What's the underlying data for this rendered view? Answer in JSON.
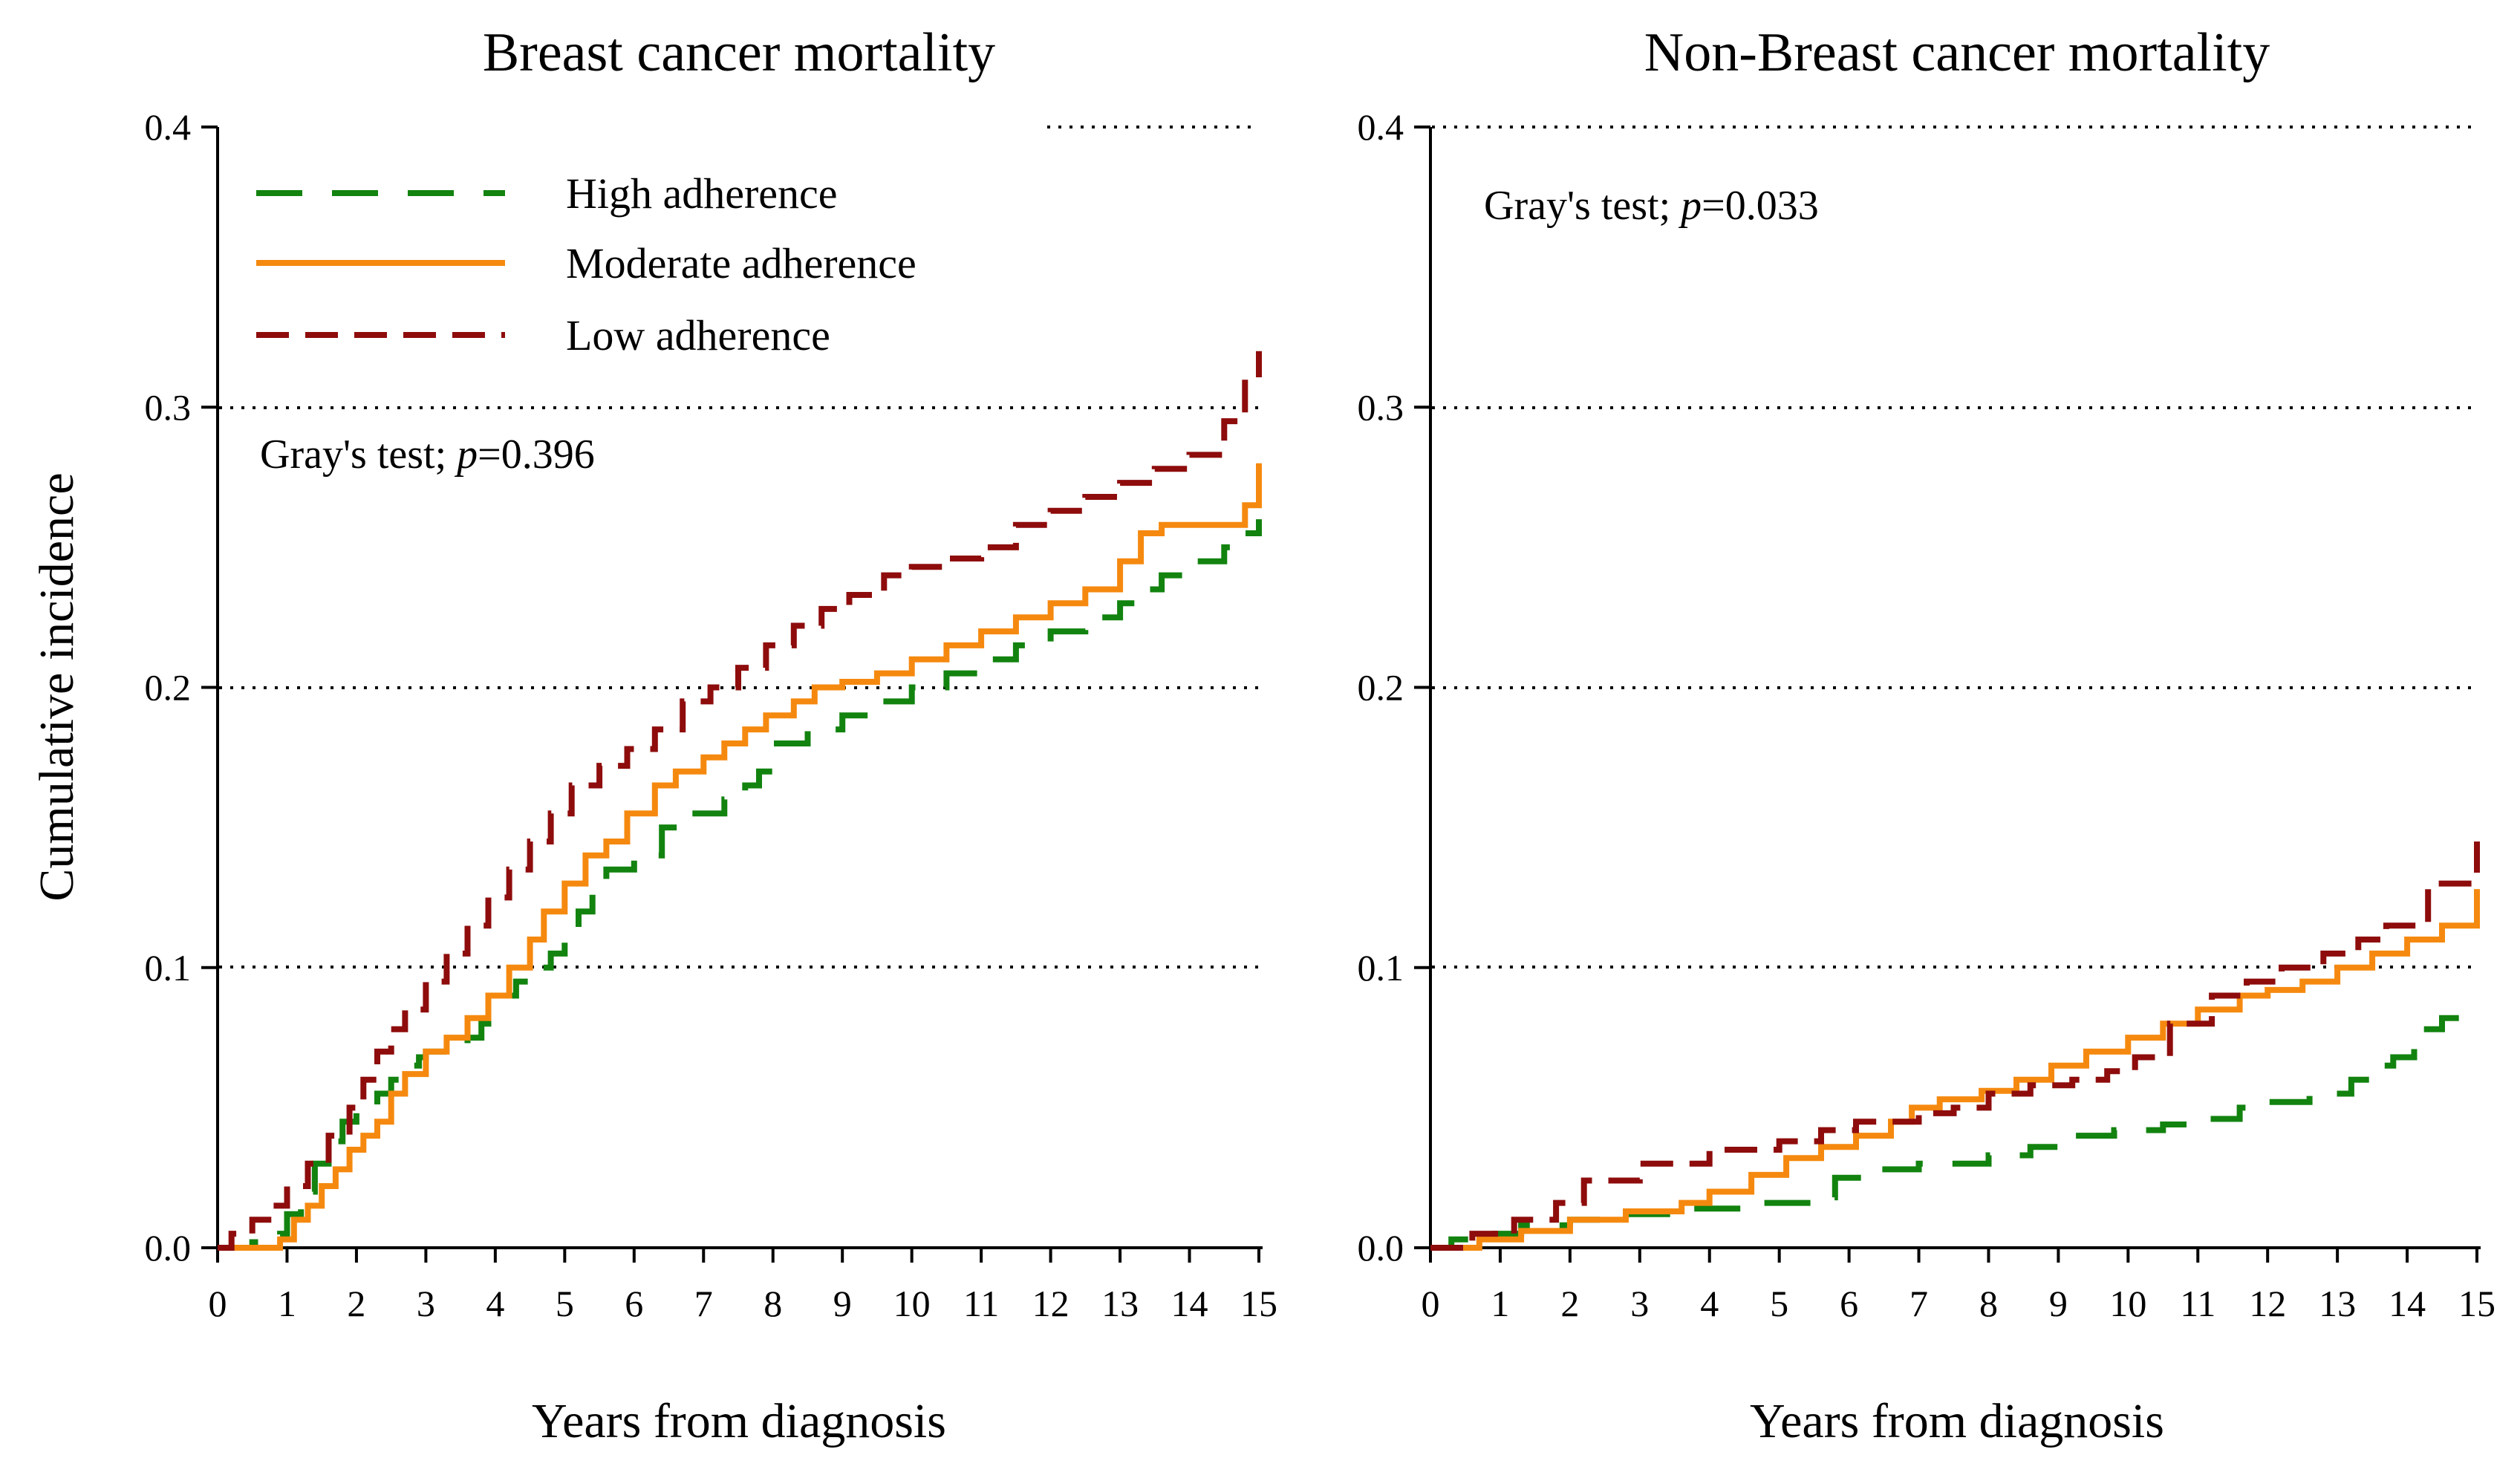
{
  "chart_data": [
    {
      "type": "line",
      "title": "Breast cancer mortality",
      "xlabel": "Years from diagnosis",
      "ylabel": "Cumulative incidence",
      "xlim": [
        0,
        15
      ],
      "ylim": [
        0,
        0.4
      ],
      "xticks": [
        "0",
        "1",
        "2",
        "3",
        "4",
        "5",
        "6",
        "7",
        "8",
        "9",
        "10",
        "11",
        "12",
        "13",
        "14",
        "15"
      ],
      "yticks": [
        "0.0",
        "0.1",
        "0.2",
        "0.3",
        "0.4"
      ],
      "grid_y": [
        0.1,
        0.2,
        0.3,
        0.4
      ],
      "legend": {
        "placement": "top-left",
        "entries": [
          {
            "name": "High adherence",
            "series": 0
          },
          {
            "name": "Moderate adherence",
            "series": 1
          },
          {
            "name": "Low adherence",
            "series": 2
          }
        ]
      },
      "annotation": {
        "prefix": "Gray's test; ",
        "p_label": "p",
        "value_text": "=0.396"
      },
      "series": [
        {
          "name": "High adherence",
          "color": "#12830f",
          "style": "long-dash",
          "x": [
            0,
            0.5,
            0.9,
            1.0,
            1.2,
            1.4,
            1.6,
            1.8,
            2.0,
            2.3,
            2.5,
            2.7,
            2.9,
            3.0,
            3.3,
            3.6,
            3.8,
            3.9,
            4.0,
            4.3,
            4.6,
            4.8,
            5.0,
            5.2,
            5.4,
            5.6,
            6.0,
            6.4,
            6.8,
            7.3,
            7.6,
            7.8,
            8.0,
            8.5,
            9.0,
            9.5,
            10.0,
            10.5,
            11.0,
            11.5,
            12.0,
            12.5,
            13.0,
            13.3,
            13.6,
            14.0,
            14.5,
            14.8,
            15.0
          ],
          "y": [
            0,
            0.002,
            0.005,
            0.012,
            0.02,
            0.03,
            0.038,
            0.045,
            0.05,
            0.055,
            0.06,
            0.065,
            0.068,
            0.07,
            0.072,
            0.075,
            0.08,
            0.085,
            0.09,
            0.095,
            0.1,
            0.105,
            0.11,
            0.12,
            0.13,
            0.135,
            0.14,
            0.15,
            0.155,
            0.16,
            0.165,
            0.17,
            0.18,
            0.185,
            0.19,
            0.195,
            0.2,
            0.205,
            0.21,
            0.215,
            0.22,
            0.225,
            0.23,
            0.235,
            0.24,
            0.245,
            0.25,
            0.255,
            0.26
          ]
        },
        {
          "name": "Moderate adherence",
          "color": "#f5890f",
          "style": "solid",
          "x": [
            0,
            0.5,
            0.9,
            1.1,
            1.3,
            1.5,
            1.7,
            1.9,
            2.1,
            2.3,
            2.5,
            2.7,
            3.0,
            3.3,
            3.6,
            3.9,
            4.2,
            4.5,
            4.7,
            5.0,
            5.3,
            5.6,
            5.9,
            6.3,
            6.6,
            7.0,
            7.3,
            7.6,
            7.9,
            8.3,
            8.6,
            9.0,
            9.5,
            10.0,
            10.5,
            11.0,
            11.5,
            12.0,
            12.5,
            13.0,
            13.3,
            13.6,
            14.0,
            14.5,
            14.8,
            15.0
          ],
          "y": [
            0,
            0,
            0.003,
            0.01,
            0.015,
            0.022,
            0.028,
            0.035,
            0.04,
            0.045,
            0.055,
            0.062,
            0.07,
            0.075,
            0.082,
            0.09,
            0.1,
            0.11,
            0.12,
            0.13,
            0.14,
            0.145,
            0.155,
            0.165,
            0.17,
            0.175,
            0.18,
            0.185,
            0.19,
            0.195,
            0.2,
            0.202,
            0.205,
            0.21,
            0.215,
            0.22,
            0.225,
            0.23,
            0.235,
            0.245,
            0.255,
            0.258,
            0.258,
            0.258,
            0.265,
            0.28
          ]
        },
        {
          "name": "Low adherence",
          "color": "#8e0c0c",
          "style": "dash",
          "x": [
            0,
            0.2,
            0.5,
            0.8,
            1.0,
            1.3,
            1.6,
            1.9,
            2.1,
            2.3,
            2.5,
            2.7,
            3.0,
            3.3,
            3.6,
            3.9,
            4.2,
            4.5,
            4.8,
            5.1,
            5.5,
            5.9,
            6.3,
            6.7,
            7.1,
            7.5,
            7.9,
            8.3,
            8.7,
            9.1,
            9.6,
            10.0,
            10.5,
            11.0,
            11.5,
            12.0,
            12.5,
            13.0,
            13.5,
            14.0,
            14.5,
            14.8,
            15.0
          ],
          "y": [
            0,
            0.005,
            0.01,
            0.015,
            0.022,
            0.03,
            0.04,
            0.05,
            0.06,
            0.07,
            0.078,
            0.085,
            0.095,
            0.105,
            0.115,
            0.125,
            0.135,
            0.145,
            0.155,
            0.165,
            0.172,
            0.178,
            0.185,
            0.195,
            0.2,
            0.207,
            0.215,
            0.222,
            0.228,
            0.233,
            0.24,
            0.243,
            0.246,
            0.25,
            0.258,
            0.263,
            0.268,
            0.273,
            0.278,
            0.283,
            0.295,
            0.31,
            0.32
          ]
        }
      ]
    },
    {
      "type": "line",
      "title": "Non-Breast cancer mortality",
      "xlabel": "Years from diagnosis",
      "ylabel": "",
      "xlim": [
        0,
        15
      ],
      "ylim": [
        0,
        0.4
      ],
      "xticks": [
        "0",
        "1",
        "2",
        "3",
        "4",
        "5",
        "6",
        "7",
        "8",
        "9",
        "10",
        "11",
        "12",
        "13",
        "14",
        "15"
      ],
      "yticks": [
        "0.0",
        "0.1",
        "0.2",
        "0.3",
        "0.4"
      ],
      "grid_y": [
        0.1,
        0.2,
        0.3,
        0.4
      ],
      "annotation": {
        "prefix": "Gray's test; ",
        "p_label": "p",
        "value_text": "=0.033"
      },
      "series": [
        {
          "name": "High adherence",
          "color": "#12830f",
          "style": "long-dash",
          "x": [
            0,
            0.3,
            0.8,
            1.3,
            2.0,
            2.8,
            3.6,
            4.5,
            5.5,
            5.8,
            6.3,
            7.0,
            8.0,
            8.6,
            9.2,
            9.8,
            10.5,
            11.0,
            11.6,
            12.0,
            12.6,
            13.2,
            13.5,
            13.8,
            14.1,
            14.5,
            15.0
          ],
          "y": [
            0,
            0.003,
            0.005,
            0.008,
            0.01,
            0.012,
            0.014,
            0.016,
            0.018,
            0.025,
            0.028,
            0.03,
            0.033,
            0.036,
            0.04,
            0.042,
            0.044,
            0.046,
            0.05,
            0.052,
            0.055,
            0.06,
            0.065,
            0.068,
            0.078,
            0.082,
            0.085
          ]
        },
        {
          "name": "Moderate adherence",
          "color": "#f5890f",
          "style": "solid",
          "x": [
            0,
            0.7,
            1.3,
            2.0,
            2.8,
            3.6,
            4.0,
            4.6,
            5.1,
            5.6,
            6.1,
            6.6,
            6.9,
            7.3,
            7.9,
            8.4,
            8.9,
            9.4,
            10.0,
            10.5,
            11.0,
            11.6,
            12.0,
            12.5,
            13.0,
            13.5,
            14.0,
            14.5,
            15.0
          ],
          "y": [
            0,
            0.003,
            0.006,
            0.01,
            0.013,
            0.016,
            0.02,
            0.026,
            0.032,
            0.036,
            0.04,
            0.045,
            0.05,
            0.053,
            0.056,
            0.06,
            0.065,
            0.07,
            0.075,
            0.08,
            0.085,
            0.09,
            0.092,
            0.095,
            0.1,
            0.105,
            0.11,
            0.115,
            0.128
          ]
        },
        {
          "name": "Low adherence",
          "color": "#8e0c0c",
          "style": "dash",
          "x": [
            0,
            0.6,
            1.2,
            1.8,
            2.2,
            3.0,
            4.0,
            5.0,
            5.6,
            6.1,
            7.0,
            7.5,
            8.0,
            8.6,
            9.2,
            9.7,
            10.1,
            10.6,
            11.2,
            11.7,
            12.2,
            12.8,
            13.3,
            13.7,
            14.3,
            15.0
          ],
          "y": [
            0,
            0.005,
            0.01,
            0.016,
            0.024,
            0.03,
            0.035,
            0.038,
            0.042,
            0.045,
            0.048,
            0.05,
            0.055,
            0.058,
            0.06,
            0.063,
            0.068,
            0.08,
            0.09,
            0.095,
            0.1,
            0.105,
            0.11,
            0.115,
            0.13,
            0.145
          ]
        }
      ]
    }
  ]
}
